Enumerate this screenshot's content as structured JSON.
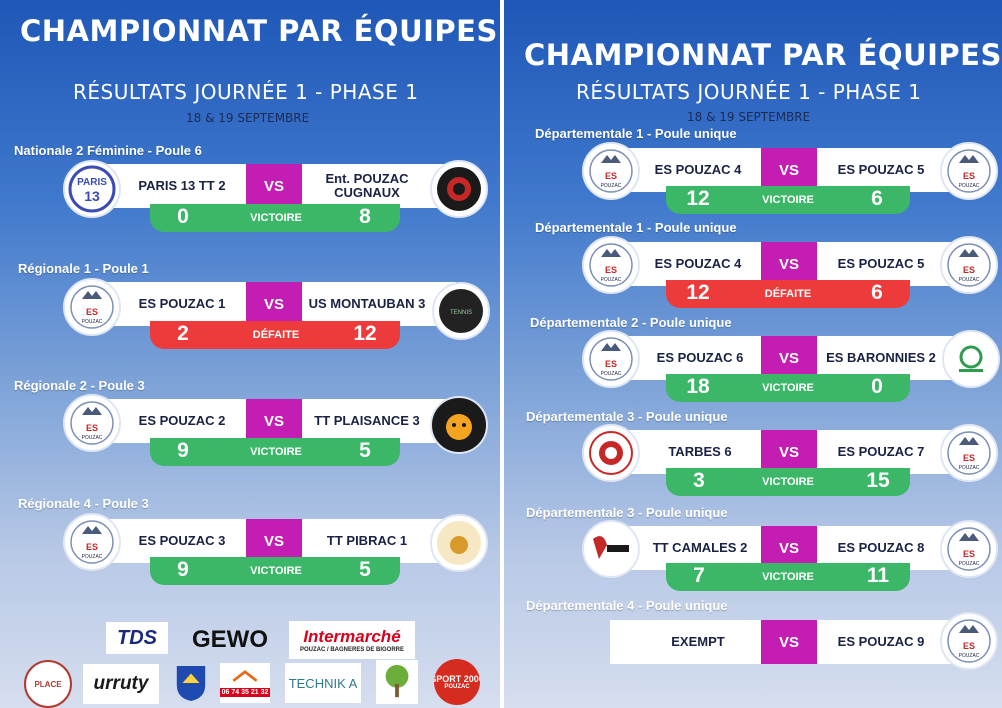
{
  "colors": {
    "vs": "#c41db3",
    "win": "#3bb767",
    "lose": "#ed3b3b",
    "panel_top": "#1f57b8"
  },
  "left": {
    "title": "CHAMPIONNAT PAR ÉQUIPES",
    "subtitle": "RÉSULTATS JOURNÉE 1 - PHASE 1",
    "date": "18 & 19 SEPTEMBRE",
    "matches": [
      {
        "league": "Nationale 2 Féminine - Poule 6",
        "home": "PARIS 13 TT 2",
        "away": "Ent. POUZAC CUGNAUX",
        "home_score": "0",
        "away_score": "8",
        "vs": "VS",
        "result": "VICTOIRE",
        "home_logo": "paris13-logo",
        "away_logo": "entente-logo"
      },
      {
        "league": "Régionale 1 - Poule 1",
        "home": "ES POUZAC 1",
        "away": "US MONTAUBAN 3",
        "home_score": "2",
        "away_score": "12",
        "vs": "VS",
        "result": "DÉFAITE",
        "home_logo": "pouzac-logo",
        "away_logo": "montauban-logo"
      },
      {
        "league": "Régionale 2 - Poule 3",
        "home": "ES POUZAC 2",
        "away": "TT PLAISANCE 3",
        "home_score": "9",
        "away_score": "5",
        "vs": "VS",
        "result": "VICTOIRE",
        "home_logo": "pouzac-logo",
        "away_logo": "plaisance-logo"
      },
      {
        "league": "Régionale 4 - Poule 3",
        "home": "ES POUZAC 3",
        "away": "TT PIBRAC 1",
        "home_score": "9",
        "away_score": "5",
        "vs": "VS",
        "result": "VICTOIRE",
        "home_logo": "pouzac-logo",
        "away_logo": "pibrac-logo"
      }
    ],
    "sponsors": [
      {
        "name": "TDS"
      },
      {
        "name": "GEWO"
      },
      {
        "name": "Intermarché",
        "sub": "POUZAC / BAGNERES DE BIGORRE"
      },
      {
        "name": "PLACE"
      },
      {
        "name": "urruty"
      },
      {
        "name": "blason-icon"
      },
      {
        "name": "06 74 35 21 32"
      },
      {
        "name": "TECHNIK A"
      },
      {
        "name": "tree-icon"
      },
      {
        "name": "SPORT 2000",
        "sub": "POUZAC"
      }
    ]
  },
  "right": {
    "title": "CHAMPIONNAT PAR ÉQUIPES",
    "subtitle": "RÉSULTATS JOURNÉE 1 - PHASE 1",
    "date": "18 & 19 SEPTEMBRE",
    "matches": [
      {
        "league": "Départementale 1 - Poule unique",
        "home": "ES POUZAC 4",
        "away": "ES POUZAC 5",
        "home_score": "12",
        "away_score": "6",
        "vs": "VS",
        "result": "VICTOIRE"
      },
      {
        "league": "Départementale 1 - Poule unique",
        "home": "ES POUZAC 4",
        "away": "ES POUZAC 5",
        "home_score": "12",
        "away_score": "6",
        "vs": "VS",
        "result": "DÉFAITE"
      },
      {
        "league": "Départementale 2 - Poule unique",
        "home": "ES POUZAC 6",
        "away": "ES BARONNIES 2",
        "home_score": "18",
        "away_score": "0",
        "vs": "VS",
        "result": "VICTOIRE"
      },
      {
        "league": "Départementale 3 - Poule unique",
        "home": "TARBES 6",
        "away": "ES POUZAC 7",
        "home_score": "3",
        "away_score": "15",
        "vs": "VS",
        "result": "VICTOIRE"
      },
      {
        "league": "Départementale 3 - Poule unique",
        "home": "TT CAMALES 2",
        "away": "ES POUZAC 8",
        "home_score": "7",
        "away_score": "11",
        "vs": "VS",
        "result": "VICTOIRE"
      },
      {
        "league": "Départementale 4 - Poule unique",
        "home": "EXEMPT",
        "away": "ES POUZAC 9",
        "vs": "VS"
      }
    ]
  }
}
